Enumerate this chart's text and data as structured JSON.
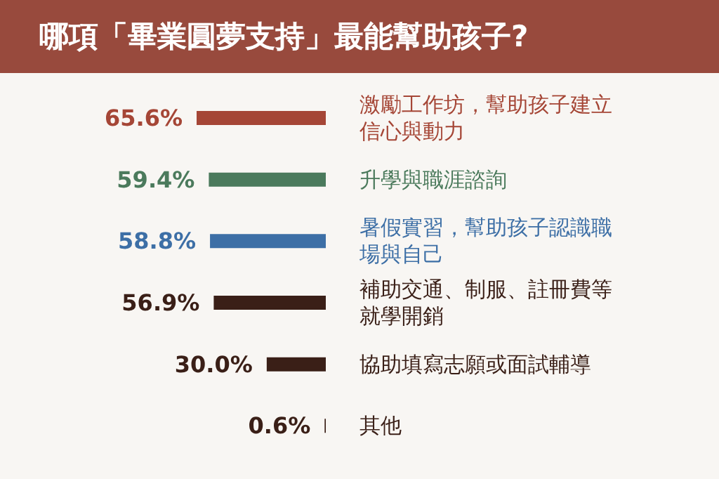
{
  "chart_data": {
    "type": "bar",
    "orientation": "horizontal",
    "title": "哪項「畢業圓夢支持」最能幫助孩子?",
    "categories": [
      "激勵工作坊，幫助孩子建立信心與動力",
      "升學與職涯諮詢",
      "暑假實習，幫助孩子認識職場與自己",
      "補助交通、制服、註冊費等就學開銷",
      "協助填寫志願或面試輔導",
      "其他"
    ],
    "values": [
      65.6,
      59.4,
      58.8,
      56.9,
      30.0,
      0.6
    ],
    "colors": [
      "#a54636",
      "#4b7a5c",
      "#3d6fa6",
      "#3a1f17",
      "#3a1f17",
      "#3a1f17"
    ],
    "value_labels": [
      "65.6%",
      "59.4%",
      "58.8%",
      "56.9%",
      "30.0%",
      "0.6%"
    ]
  }
}
